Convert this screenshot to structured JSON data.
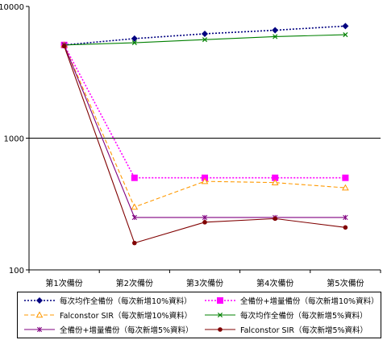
{
  "chart_data": {
    "type": "line",
    "y_scale": "log",
    "ylim": [
      100,
      10000
    ],
    "y_ticks": [
      "100",
      "1000",
      "10000"
    ],
    "categories": [
      "第1次備份",
      "第2次備份",
      "第3次備份",
      "第4次備份",
      "第5次備份"
    ],
    "grid": "horizontal major line at 1000",
    "legend_placement": "bottom",
    "series": [
      {
        "name": "每次均作全備份（每次新增10%資料）",
        "values": [
          5100,
          5700,
          6200,
          6600,
          7100
        ],
        "color": "#000080",
        "dash": "dotted",
        "marker": "diamond"
      },
      {
        "name": "全備份+增量備份（每次新增10%資料）",
        "values": [
          5100,
          500,
          500,
          500,
          500
        ],
        "color": "#ff00ff",
        "dash": "dotted",
        "marker": "square"
      },
      {
        "name": "Falconstor SIR（每次新增10%資料）",
        "values": [
          5100,
          300,
          470,
          460,
          420
        ],
        "color": "#ff9900",
        "dash": "dashed",
        "marker": "triangle"
      },
      {
        "name": "每次均作全備份（每次新增5%資料）",
        "values": [
          5100,
          5300,
          5600,
          5900,
          6100
        ],
        "color": "#008000",
        "dash": "solid",
        "marker": "x"
      },
      {
        "name": "全備份+增量備份（每次新增5%資料）",
        "values": [
          5100,
          250,
          250,
          250,
          250
        ],
        "color": "#800080",
        "dash": "solid",
        "marker": "star"
      },
      {
        "name": "Falconstor SIR（每次新增5%資料）",
        "values": [
          5000,
          160,
          230,
          245,
          210
        ],
        "color": "#800000",
        "dash": "solid",
        "marker": "circle"
      }
    ]
  }
}
